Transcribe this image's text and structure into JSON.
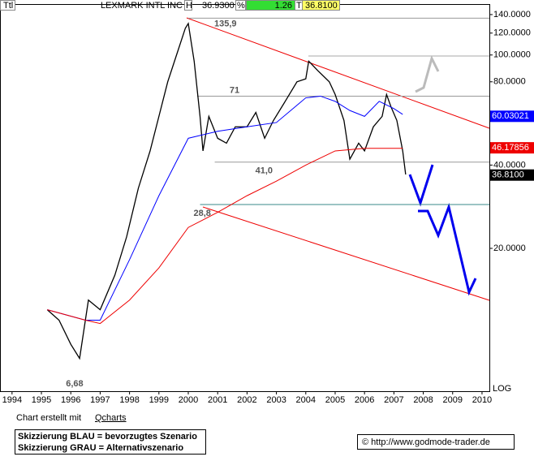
{
  "chart_data": {
    "type": "line",
    "log_scale": true,
    "header": {
      "symbol": "Ttl",
      "name": "LEXMARK INTL INC",
      "high_tag": "H",
      "high": "36.9300",
      "pct_tag": "%",
      "change": "1.26",
      "last_tag": "T",
      "last": "36.8100"
    },
    "xlim": [
      1993.59,
      2010.25
    ],
    "xticks": [
      1994,
      1995,
      1996,
      1997,
      1998,
      1999,
      2000,
      2001,
      2002,
      2003,
      2004,
      2005,
      2006,
      2007,
      2008,
      2009,
      2010
    ],
    "ylim": [
      6.09,
      152.8
    ],
    "yticks": [
      {
        "value": 20,
        "label": "20.0000"
      },
      {
        "value": 40,
        "label": "40.0000"
      },
      {
        "value": 60,
        "label": "60.0000"
      },
      {
        "value": 80,
        "label": "80.0000"
      },
      {
        "value": 100,
        "label": "100.0000"
      },
      {
        "value": 120,
        "label": "120.0000"
      },
      {
        "value": 140,
        "label": "140.0000"
      }
    ],
    "scale_label": "LOG",
    "series": [
      {
        "color": "#000000",
        "x": [
          1995.2,
          1995.6,
          1996.0,
          1996.3,
          1996.6,
          1997.0,
          1997.5,
          1997.9,
          1998.3,
          1998.7,
          1999.0,
          1999.3,
          1999.6,
          1999.9,
          2000.0,
          2000.2,
          2000.4,
          2000.5,
          2000.7,
          2001.0,
          2001.3,
          2001.6,
          2002.0,
          2002.3,
          2002.6,
          2002.9,
          2003.3,
          2003.7,
          2004.0,
          2004.1,
          2004.4,
          2004.8,
          2005.0,
          2005.3,
          2005.5,
          2005.8,
          2006.0,
          2006.3,
          2006.6,
          2006.75,
          2006.9,
          2007.1,
          2007.3,
          2007.4
        ],
        "values": [
          12,
          11,
          9,
          8,
          13,
          12,
          16,
          22,
          33,
          45,
          60,
          80,
          100,
          125,
          130,
          95,
          60,
          45,
          60,
          50,
          48,
          55,
          55,
          62,
          50,
          58,
          68,
          80,
          82,
          95,
          88,
          80,
          72,
          58,
          42,
          48,
          45,
          55,
          60,
          72,
          65,
          58,
          45,
          37
        ]
      },
      {
        "color": "#0000ff",
        "x": [
          1995.2,
          1996.5,
          1997.0,
          1998.0,
          1999.0,
          2000.0,
          2001.0,
          2002.0,
          2003.0,
          2004.0,
          2004.5,
          2005.0,
          2005.5,
          2006.0,
          2006.5,
          2007.0,
          2007.3
        ],
        "values": [
          12,
          11,
          11,
          18.2,
          31,
          50,
          53,
          55,
          57,
          70,
          71,
          68,
          63,
          60,
          68,
          64,
          61
        ]
      },
      {
        "color": "#ee0000",
        "x": [
          1995.2,
          1996.5,
          1997.0,
          1998.0,
          1999.0,
          2000.0,
          2001.0,
          2002.0,
          2003.0,
          2004.0,
          2005.0,
          2006.0,
          2007.0,
          2007.3
        ],
        "values": [
          12,
          11,
          10.7,
          13,
          17,
          23.8,
          27,
          31,
          35,
          40,
          45,
          46,
          46,
          46
        ]
      }
    ],
    "last_values": [
      {
        "value": 60.03021,
        "label": "60.03021",
        "color": "#0000ff",
        "text_color": "#ffffff"
      },
      {
        "value": 46.17856,
        "label": "46.17856",
        "color": "#ee0000",
        "text_color": "#ffffff"
      },
      {
        "value": 36.81,
        "label": "36.8100",
        "color": "#000000",
        "text_color": "#ffffff"
      }
    ],
    "annotations": [
      {
        "text": "135,9",
        "value": 135.9,
        "x": 2000.0,
        "level_line": true
      },
      {
        "text": "71",
        "value": 71,
        "x": 2000.3,
        "level_line": true
      },
      {
        "text": "41,0",
        "value": 41.0,
        "x": 2000.9,
        "level_line": true
      },
      {
        "text": "28,8",
        "value": 28.8,
        "x": 2000.4,
        "level_line": true
      },
      {
        "text": "6,68",
        "value": 6.68,
        "x": 1996.0,
        "level_line": false
      }
    ],
    "credit": "Chart erstellt mit",
    "credit_link": "Qcharts",
    "legend_notes": [
      "Skizzierung BLAU = bevorzugtes Szenario",
      "Skizzierung GRAU = Alternativszenario"
    ],
    "source": "© http://www.godmode-trader.de"
  }
}
